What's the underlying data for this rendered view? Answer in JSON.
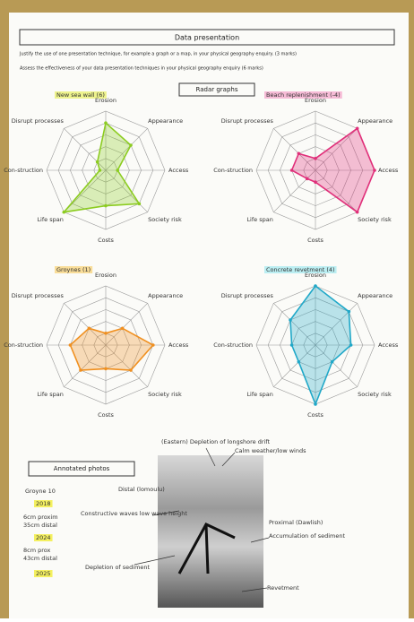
{
  "header": {
    "title": "Data presentation",
    "questions": [
      "Justify the use of one presentation technique, for example a graph or a map, in your physical geography enquiry. (3 marks)",
      "Assess the effectiveness of your data presentation techniques in your physical geography enquiry (6 marks)"
    ],
    "section": "Radar graphs"
  },
  "chart_data": [
    {
      "type": "radar",
      "title": "New sea wall (6)",
      "title_highlight": "#e8f060",
      "color": "#8ccc20",
      "categories": [
        "Erosion",
        "Appearance",
        "Access",
        "Society risk",
        "Costs",
        "Life span",
        "Con-struction",
        "Disrupt processes"
      ],
      "values": [
        4,
        3,
        1,
        4,
        3,
        5,
        0.5,
        1
      ],
      "rlim": [
        0,
        5
      ],
      "rings": 5
    },
    {
      "type": "radar",
      "title": "Beach replenishment (-4)",
      "title_highlight": "#f4a0c8",
      "color": "#e0307a",
      "categories": [
        "Erosion",
        "Appearance",
        "Access",
        "Society risk",
        "Costs",
        "Life span",
        "Con-struction",
        "Disrupt processes"
      ],
      "values": [
        1,
        5,
        5,
        5,
        1,
        1,
        2,
        2
      ],
      "rlim": [
        0,
        5
      ],
      "rings": 5
    },
    {
      "type": "radar",
      "title": "Groynes (1)",
      "title_highlight": "#f8d070",
      "color": "#f09020",
      "categories": [
        "Erosion",
        "Appearance",
        "Access",
        "Society risk",
        "Costs",
        "Life span",
        "Con-struction",
        "Disrupt processes"
      ],
      "values": [
        1,
        2,
        4,
        3,
        2,
        3,
        3,
        2
      ],
      "rlim": [
        0,
        5
      ],
      "rings": 5
    },
    {
      "type": "radar",
      "title": "Concrete revetment (4)",
      "title_highlight": "#a0e8f0",
      "color": "#20a8c8",
      "categories": [
        "Erosion",
        "Appearance",
        "Access",
        "Society risk",
        "Costs",
        "Life span",
        "Con-struction",
        "Disrupt processes"
      ],
      "values": [
        5,
        4,
        3,
        2,
        5,
        2,
        2,
        3
      ],
      "rlim": [
        0,
        5
      ],
      "rings": 5
    }
  ],
  "photos": {
    "section": "Annotated photos",
    "notes": [
      "Groyne 10",
      "2018",
      "6cm proxim",
      "35cm distal",
      "2024",
      "8cm prox",
      "43cm distal",
      "2025"
    ],
    "annotations": [
      "(Eastern) Depletion of longshore drift",
      "Calm weather/low winds",
      "Distal (lomoulu)",
      "Constructive waves low wave height",
      "Proximal (Dawlish)",
      "Accumulation of sediment",
      "Depletion of sediment",
      "Revetment"
    ]
  }
}
